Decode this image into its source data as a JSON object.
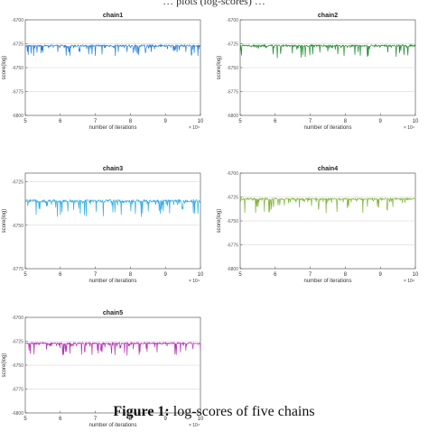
{
  "header_fragment": "… plots (log-scores) …",
  "caption": {
    "label": "Figure 1:",
    "text": "log-scores of five chains"
  },
  "chart_data": [
    {
      "type": "line",
      "title": "chain1",
      "xlabel": "number of iterations",
      "ylabel": "score(log)",
      "x_exponent": "× 10⁴",
      "xlim": [
        5,
        10
      ],
      "ylim": [
        -6800,
        -6700
      ],
      "xticks": [
        "5",
        "6",
        "7",
        "8",
        "9",
        "10"
      ],
      "yticks": [
        "-6700",
        "-6725",
        "-6750",
        "-6775",
        "-6800"
      ],
      "series": [
        {
          "x": [
            5,
            10
          ],
          "level": -6727,
          "dip_min": -6738,
          "color": "#2a7fd4"
        }
      ]
    },
    {
      "type": "line",
      "title": "chain2",
      "xlabel": "number of iterations",
      "ylabel": "score(log)",
      "x_exponent": "× 10⁴",
      "xlim": [
        5,
        10
      ],
      "ylim": [
        -6800,
        -6700
      ],
      "xticks": [
        "5",
        "6",
        "7",
        "8",
        "9",
        "10"
      ],
      "yticks": [
        "-6700",
        "-6725",
        "-6750",
        "-6775",
        "-6800"
      ],
      "series": [
        {
          "x": [
            5,
            10
          ],
          "level": -6727,
          "dip_min": -6740,
          "color": "#1f8a2e"
        }
      ]
    },
    {
      "type": "line",
      "title": "chain3",
      "xlabel": "number of iterations",
      "ylabel": "score(log)",
      "x_exponent": "× 10⁴",
      "xlim": [
        5,
        10
      ],
      "ylim": [
        -6775,
        -6720
      ],
      "xticks": [
        "5",
        "6",
        "7",
        "8",
        "9",
        "10"
      ],
      "yticks": [
        "-6725",
        "-6750",
        "-6775"
      ],
      "series": [
        {
          "x": [
            5,
            10
          ],
          "level": -6736,
          "dip_min": -6746,
          "color": "#33aee6"
        }
      ]
    },
    {
      "type": "line",
      "title": "chain4",
      "xlabel": "number of iterations",
      "ylabel": "score(log)",
      "x_exponent": "× 10⁴",
      "xlim": [
        5,
        10
      ],
      "ylim": [
        -6800,
        -6700
      ],
      "xticks": [
        "5",
        "6",
        "7",
        "8",
        "9",
        "10"
      ],
      "yticks": [
        "-6700",
        "-6725",
        "-6750",
        "-6775",
        "-6800"
      ],
      "series": [
        {
          "x": [
            5,
            10
          ],
          "level": -6727,
          "dip_min": -6742,
          "color": "#7fb33a"
        }
      ]
    },
    {
      "type": "line",
      "title": "chain5",
      "xlabel": "number of iterations",
      "ylabel": "score(log)",
      "x_exponent": "× 10⁴",
      "xlim": [
        5,
        10
      ],
      "ylim": [
        -6800,
        -6700
      ],
      "xticks": [
        "5",
        "6",
        "7",
        "8",
        "9",
        "10"
      ],
      "yticks": [
        "-6700",
        "-6725",
        "-6750",
        "-6775",
        "-6800"
      ],
      "series": [
        {
          "x": [
            5,
            10
          ],
          "level": -6727,
          "dip_min": -6740,
          "color": "#b535b5"
        }
      ]
    }
  ]
}
